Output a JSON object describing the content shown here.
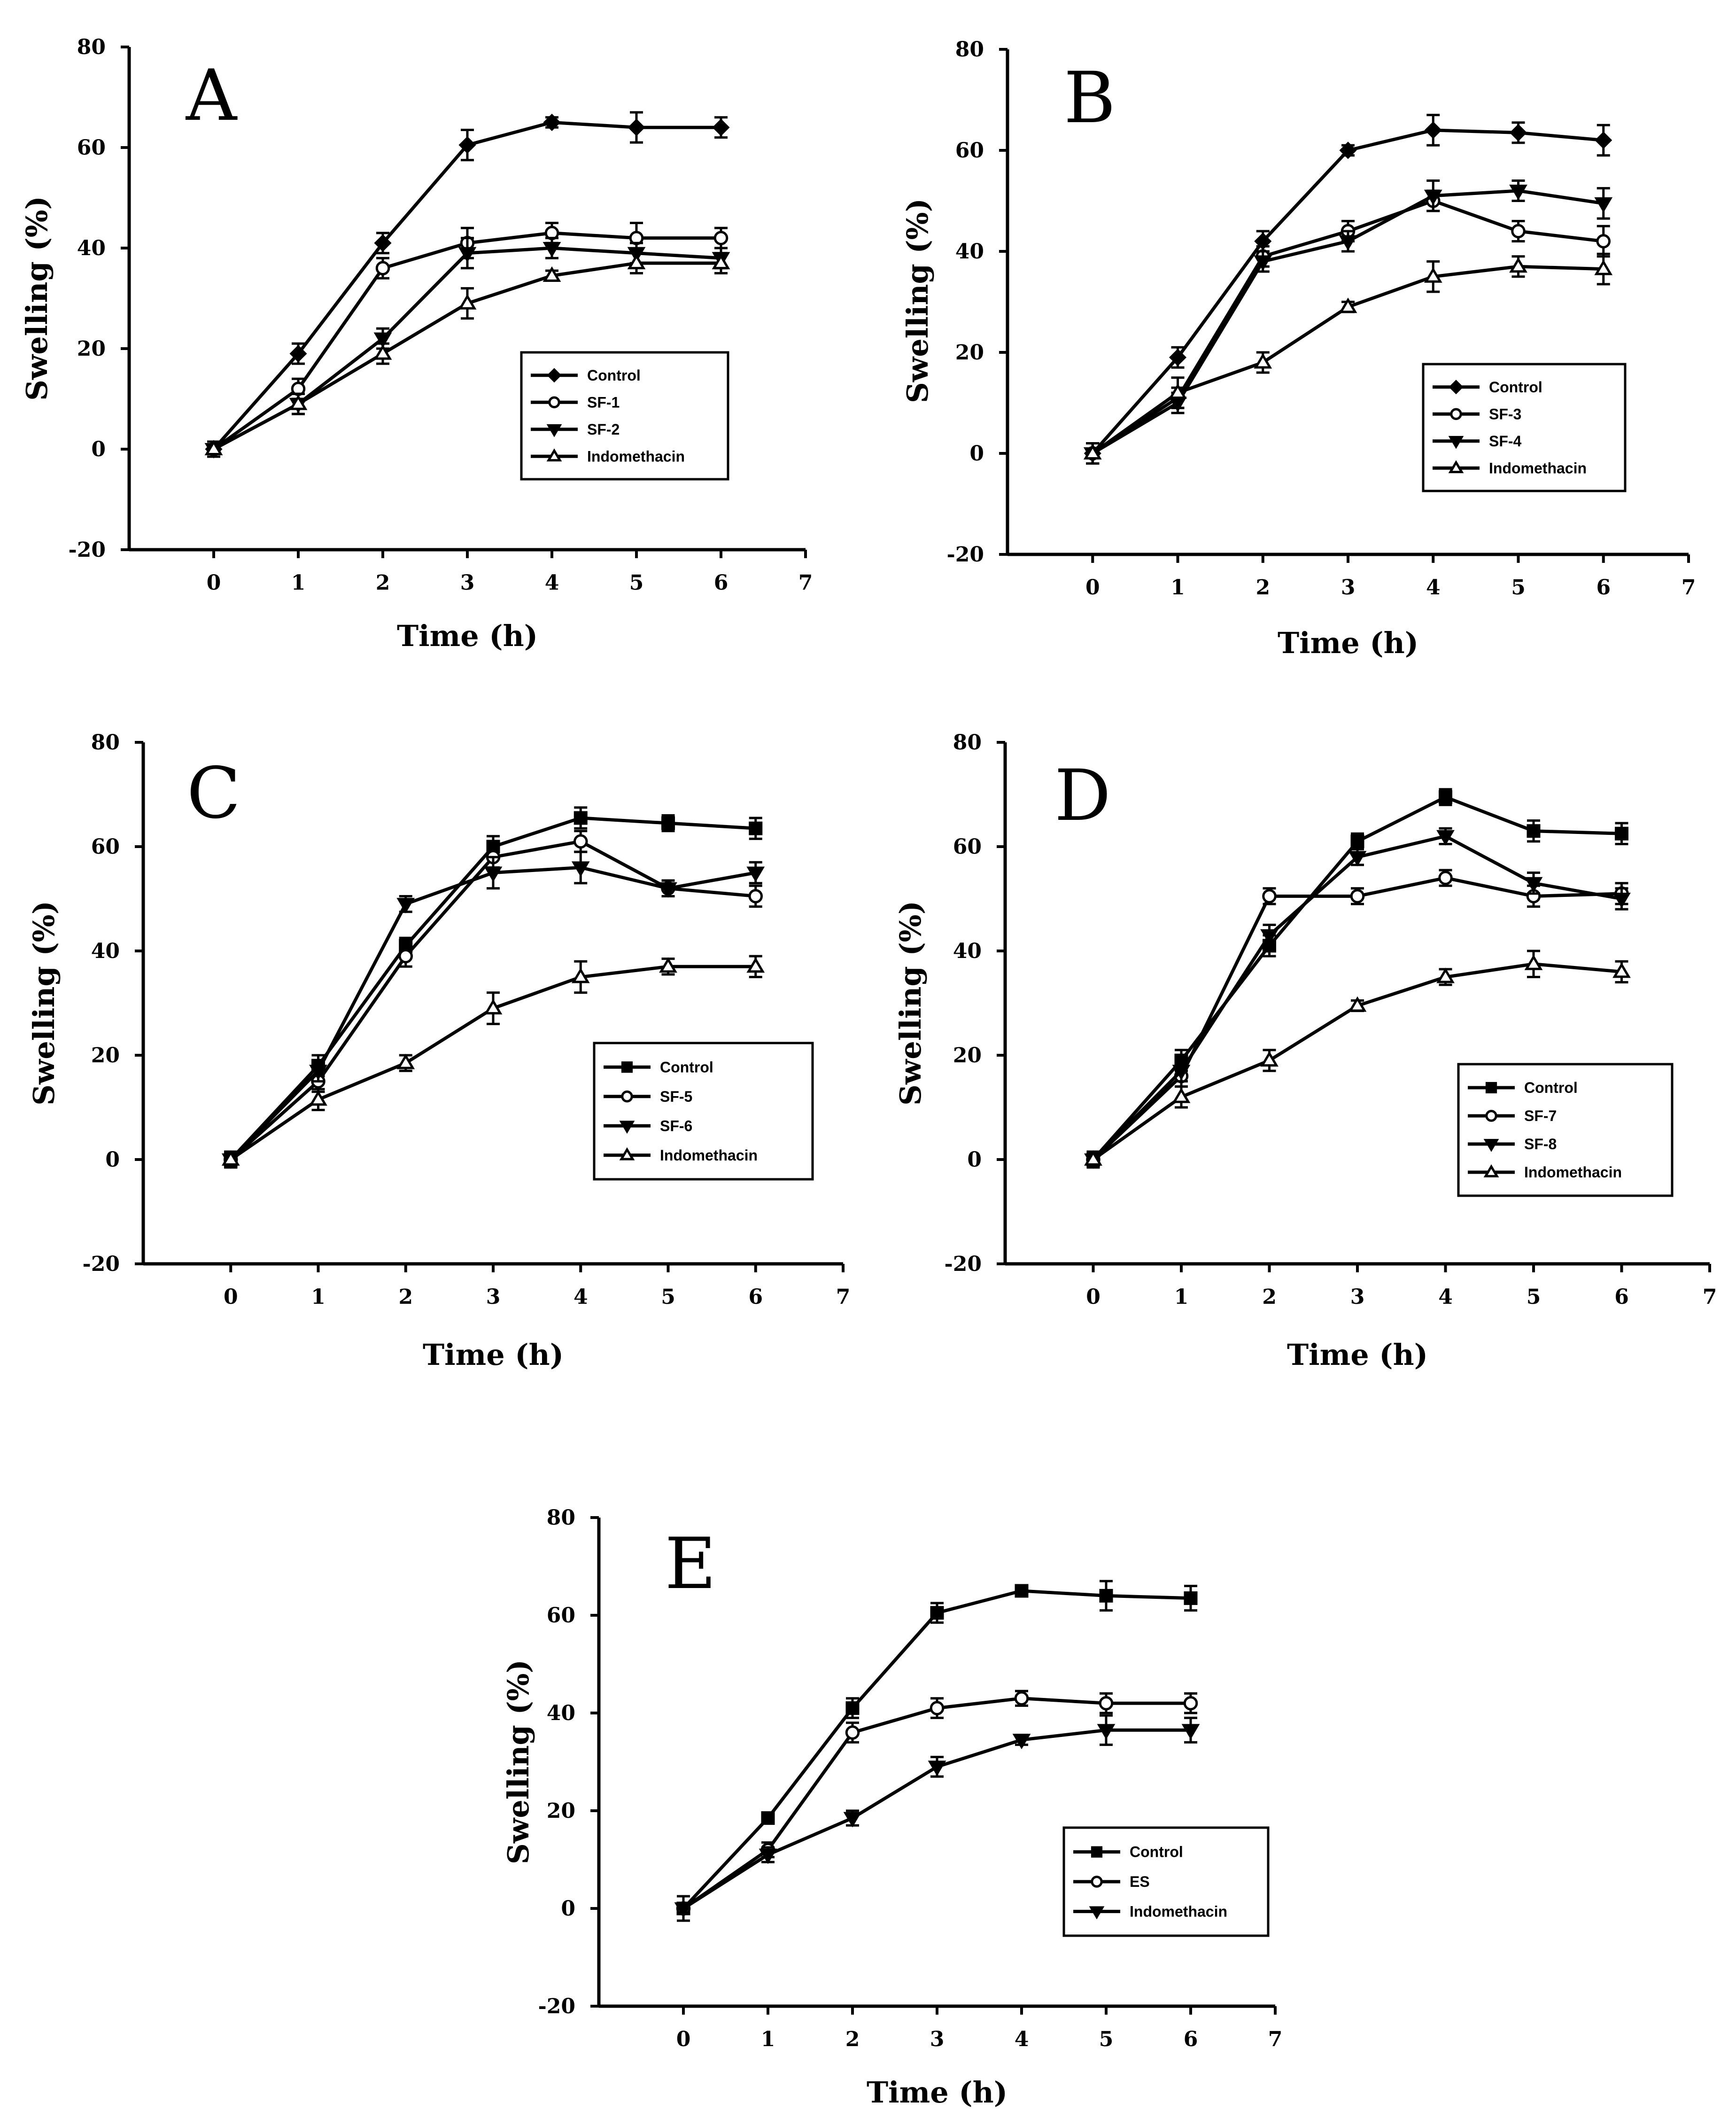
{
  "figure": {
    "background": "#ffffff",
    "ink": "#000000"
  },
  "chart_data": [
    {
      "id": "A",
      "type": "line",
      "panel_label": "A",
      "title": "",
      "xlabel": "Time (h)",
      "ylabel": "Swelling (%)",
      "xlim": [
        -1,
        7
      ],
      "ylim": [
        -20,
        80
      ],
      "xticks": [
        0,
        1,
        2,
        3,
        4,
        5,
        6,
        7
      ],
      "yticks": [
        -20,
        0,
        20,
        40,
        60,
        80
      ],
      "legend_position": "lower-right",
      "x": [
        0,
        1,
        2,
        3,
        4,
        5,
        6
      ],
      "series": [
        {
          "name": "Control",
          "marker": "filled-diamond",
          "values": [
            0,
            19,
            41,
            60.5,
            65,
            64,
            64
          ],
          "errors": [
            1.5,
            2,
            2,
            3,
            1,
            3,
            2
          ]
        },
        {
          "name": "SF-1",
          "marker": "open-circle",
          "values": [
            0,
            12,
            36,
            41,
            43,
            42,
            42
          ],
          "errors": [
            1.5,
            2,
            2,
            3,
            2,
            3,
            2
          ]
        },
        {
          "name": "SF-2",
          "marker": "filled-triangle-down",
          "values": [
            0,
            9,
            22,
            39,
            40,
            39,
            38
          ],
          "errors": [
            1.5,
            2,
            2,
            3,
            2,
            2,
            2
          ]
        },
        {
          "name": "Indomethacin",
          "marker": "open-triangle-up",
          "values": [
            0,
            9,
            19,
            29,
            34.5,
            37,
            37
          ],
          "errors": [
            1.5,
            2,
            2,
            3,
            1,
            2,
            2
          ]
        }
      ]
    },
    {
      "id": "B",
      "type": "line",
      "panel_label": "B",
      "title": "",
      "xlabel": "Time (h)",
      "ylabel": "Swelling (%)",
      "xlim": [
        -1,
        7
      ],
      "ylim": [
        -20,
        80
      ],
      "xticks": [
        0,
        1,
        2,
        3,
        4,
        5,
        6,
        7
      ],
      "yticks": [
        -20,
        0,
        20,
        40,
        60,
        80
      ],
      "legend_position": "lower-right",
      "x": [
        0,
        1,
        2,
        3,
        4,
        5,
        6
      ],
      "series": [
        {
          "name": "Control",
          "marker": "filled-diamond",
          "values": [
            0,
            19,
            42,
            60,
            64,
            63.5,
            62
          ],
          "errors": [
            2,
            2,
            2,
            1,
            3,
            2,
            3
          ]
        },
        {
          "name": "SF-3",
          "marker": "open-circle",
          "values": [
            0,
            11,
            39,
            44,
            50,
            44,
            42
          ],
          "errors": [
            2,
            2,
            2,
            2,
            2,
            2,
            3
          ]
        },
        {
          "name": "SF-4",
          "marker": "filled-triangle-down",
          "values": [
            0,
            10,
            38,
            42,
            51,
            52,
            49.5
          ],
          "errors": [
            2,
            2,
            2,
            2,
            3,
            2,
            3
          ]
        },
        {
          "name": "Indomethacin",
          "marker": "open-triangle-up",
          "values": [
            0,
            12,
            18,
            29,
            35,
            37,
            36.5
          ],
          "errors": [
            2,
            3,
            2,
            1,
            3,
            2,
            3
          ]
        }
      ]
    },
    {
      "id": "C",
      "type": "line",
      "panel_label": "C",
      "title": "",
      "xlabel": "Time (h)",
      "ylabel": "Swelling (%)",
      "xlim": [
        -1,
        7
      ],
      "ylim": [
        -20,
        80
      ],
      "xticks": [
        0,
        1,
        2,
        3,
        4,
        5,
        6,
        7
      ],
      "yticks": [
        -20,
        0,
        20,
        40,
        60,
        80
      ],
      "legend_position": "lower-right",
      "x": [
        0,
        1,
        2,
        3,
        4,
        5,
        6
      ],
      "series": [
        {
          "name": "Control",
          "marker": "filled-square",
          "values": [
            0,
            18,
            41,
            60,
            65.5,
            64.5,
            63.5
          ],
          "errors": [
            1.5,
            2,
            1.5,
            2,
            2,
            1.5,
            2
          ]
        },
        {
          "name": "SF-5",
          "marker": "open-circle",
          "values": [
            0,
            15,
            39,
            58,
            61,
            52,
            50.5
          ],
          "errors": [
            1.5,
            2,
            2,
            2,
            2,
            1.5,
            2
          ]
        },
        {
          "name": "SF-6",
          "marker": "filled-triangle-down",
          "values": [
            0,
            17,
            49,
            55,
            56,
            52,
            55
          ],
          "errors": [
            1.5,
            2,
            1.5,
            3,
            3,
            1.5,
            2
          ]
        },
        {
          "name": "Indomethacin",
          "marker": "open-triangle-up",
          "values": [
            0,
            11.5,
            18.5,
            29,
            35,
            37,
            37
          ],
          "errors": [
            1.5,
            2,
            1.5,
            3,
            3,
            1.5,
            2
          ]
        }
      ]
    },
    {
      "id": "D",
      "type": "line",
      "panel_label": "D",
      "title": "",
      "xlabel": "Time (h)",
      "ylabel": "Swelling (%)",
      "xlim": [
        -1,
        7
      ],
      "ylim": [
        -20,
        80
      ],
      "xticks": [
        0,
        1,
        2,
        3,
        4,
        5,
        6,
        7
      ],
      "yticks": [
        -20,
        0,
        20,
        40,
        60,
        80
      ],
      "legend_position": "lower-right",
      "x": [
        0,
        1,
        2,
        3,
        4,
        5,
        6
      ],
      "series": [
        {
          "name": "Control",
          "marker": "filled-square",
          "values": [
            0,
            19,
            41,
            61,
            69.5,
            63,
            62.5
          ],
          "errors": [
            1.5,
            2,
            2,
            1.5,
            1.5,
            2,
            2
          ]
        },
        {
          "name": "SF-7",
          "marker": "open-circle",
          "values": [
            0,
            16,
            50.5,
            50.5,
            54,
            50.5,
            51
          ],
          "errors": [
            1.5,
            2,
            1.5,
            1.5,
            1.5,
            2,
            2
          ]
        },
        {
          "name": "SF-8",
          "marker": "filled-triangle-down",
          "values": [
            0,
            17,
            43,
            58,
            62,
            53,
            50
          ],
          "errors": [
            1.5,
            2,
            2,
            1.5,
            1.5,
            2,
            2
          ]
        },
        {
          "name": "Indomethacin",
          "marker": "open-triangle-up",
          "values": [
            0,
            12,
            19,
            29.5,
            35,
            37.5,
            36
          ],
          "errors": [
            1.5,
            2,
            2,
            1,
            1.5,
            2.5,
            2
          ]
        }
      ]
    },
    {
      "id": "E",
      "type": "line",
      "panel_label": "E",
      "title": "",
      "xlabel": "Time (h)",
      "ylabel": "Swelling (%)",
      "xlim": [
        -1,
        7
      ],
      "ylim": [
        -20,
        80
      ],
      "xticks": [
        0,
        1,
        2,
        3,
        4,
        5,
        6,
        7
      ],
      "yticks": [
        -20,
        0,
        20,
        40,
        60,
        80
      ],
      "legend_position": "lower-right",
      "x": [
        0,
        1,
        2,
        3,
        4,
        5,
        6
      ],
      "series": [
        {
          "name": "Control",
          "marker": "filled-square",
          "values": [
            0,
            18.5,
            41,
            60.5,
            65,
            64,
            63.5
          ],
          "errors": [
            2.5,
            1,
            2,
            2,
            1,
            3,
            2.5
          ]
        },
        {
          "name": "ES",
          "marker": "open-circle",
          "values": [
            0,
            12,
            36,
            41,
            43,
            42,
            42
          ],
          "errors": [
            2.5,
            1.5,
            2,
            2,
            1.5,
            2,
            2
          ]
        },
        {
          "name": "Indomethacin",
          "marker": "filled-triangle-down",
          "values": [
            0,
            11,
            18.5,
            29,
            34.5,
            36.5,
            36.5
          ],
          "errors": [
            2.5,
            1.5,
            1.5,
            2,
            1,
            3,
            2.5
          ]
        }
      ]
    }
  ]
}
